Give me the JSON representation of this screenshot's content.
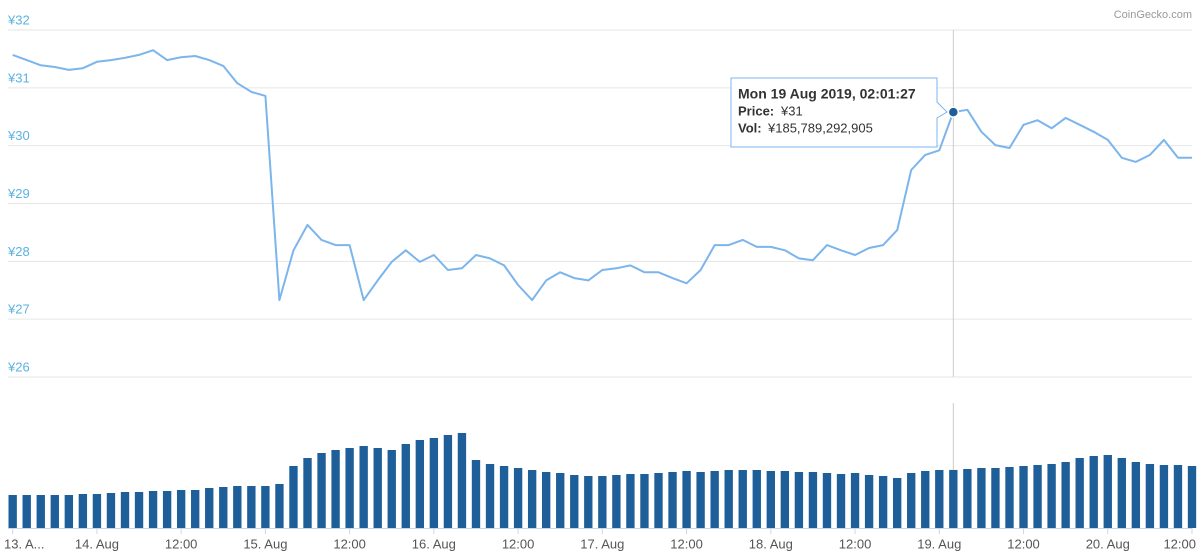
{
  "chart_data": {
    "type": "line",
    "watermark": "CoinGecko.com",
    "x": [
      "2019-08-13 12:00",
      "2019-08-13 14:00",
      "2019-08-13 16:00",
      "2019-08-13 18:00",
      "2019-08-13 20:00",
      "2019-08-13 22:00",
      "2019-08-14 00:00",
      "2019-08-14 02:00",
      "2019-08-14 04:00",
      "2019-08-14 06:00",
      "2019-08-14 08:00",
      "2019-08-14 10:00",
      "2019-08-14 12:00",
      "2019-08-14 14:00",
      "2019-08-14 16:00",
      "2019-08-14 18:00",
      "2019-08-14 20:00",
      "2019-08-14 22:00",
      "2019-08-15 00:00",
      "2019-08-15 02:00",
      "2019-08-15 04:00",
      "2019-08-15 06:00",
      "2019-08-15 08:00",
      "2019-08-15 10:00",
      "2019-08-15 12:00",
      "2019-08-15 14:00",
      "2019-08-15 16:00",
      "2019-08-15 18:00",
      "2019-08-15 20:00",
      "2019-08-15 22:00",
      "2019-08-16 00:00",
      "2019-08-16 02:00",
      "2019-08-16 04:00",
      "2019-08-16 06:00",
      "2019-08-16 08:00",
      "2019-08-16 10:00",
      "2019-08-16 12:00",
      "2019-08-16 14:00",
      "2019-08-16 16:00",
      "2019-08-16 18:00",
      "2019-08-16 20:00",
      "2019-08-16 22:00",
      "2019-08-17 00:00",
      "2019-08-17 02:00",
      "2019-08-17 04:00",
      "2019-08-17 06:00",
      "2019-08-17 08:00",
      "2019-08-17 10:00",
      "2019-08-17 12:00",
      "2019-08-17 14:00",
      "2019-08-17 16:00",
      "2019-08-17 18:00",
      "2019-08-17 20:00",
      "2019-08-17 22:00",
      "2019-08-18 00:00",
      "2019-08-18 02:00",
      "2019-08-18 04:00",
      "2019-08-18 06:00",
      "2019-08-18 08:00",
      "2019-08-18 10:00",
      "2019-08-18 12:00",
      "2019-08-18 14:00",
      "2019-08-18 16:00",
      "2019-08-18 18:00",
      "2019-08-18 20:00",
      "2019-08-18 22:00",
      "2019-08-19 00:00",
      "2019-08-19 02:00",
      "2019-08-19 04:00",
      "2019-08-19 06:00",
      "2019-08-19 08:00",
      "2019-08-19 10:00",
      "2019-08-19 12:00",
      "2019-08-19 14:00",
      "2019-08-19 16:00",
      "2019-08-19 18:00",
      "2019-08-19 20:00",
      "2019-08-19 22:00",
      "2019-08-20 00:00",
      "2019-08-20 02:00",
      "2019-08-20 04:00",
      "2019-08-20 06:00",
      "2019-08-20 08:00",
      "2019-08-20 10:00",
      "2019-08-20 12:00"
    ],
    "series": [
      {
        "color": "#7cb5ec",
        "type": "line",
        "values": [
          31.57,
          31.48,
          31.39,
          31.36,
          31.31,
          31.34,
          31.45,
          31.48,
          31.52,
          31.57,
          31.65,
          31.48,
          31.53,
          31.55,
          31.48,
          31.38,
          31.08,
          30.93,
          30.86,
          27.33,
          28.19,
          28.63,
          28.37,
          28.28,
          28.28,
          27.33,
          27.67,
          27.99,
          28.19,
          27.99,
          28.11,
          27.85,
          27.88,
          28.11,
          28.05,
          27.93,
          27.59,
          27.33,
          27.67,
          27.81,
          27.71,
          27.67,
          27.85,
          27.88,
          27.93,
          27.81,
          27.81,
          27.71,
          27.62,
          27.85,
          28.28,
          28.28,
          28.37,
          28.25,
          28.25,
          28.19,
          28.05,
          28.02,
          28.28,
          28.19,
          28.11,
          28.23,
          28.28,
          28.54,
          29.58,
          29.84,
          29.92,
          30.58,
          30.62,
          30.24,
          30.01,
          29.96,
          30.36,
          30.44,
          30.3,
          30.48,
          30.36,
          30.24,
          30.1,
          29.79,
          29.72,
          29.84,
          30.1,
          29.79,
          29.79
        ]
      },
      {
        "color": "#1f5f99",
        "type": "bar",
        "axis": "y2",
        "values": [
          105600000000.0,
          105600000000.0,
          105600000000.0,
          105600000000.0,
          105600000000.0,
          108800000000.0,
          108800000000.0,
          112000000000.0,
          115200000000.0,
          115200000000.0,
          118400000000.0,
          118400000000.0,
          121600000000.0,
          121600000000.0,
          128000000000.0,
          131200000000.0,
          134400000000.0,
          134400000000.0,
          134400000000.0,
          140800000000.0,
          198400000000.0,
          224000000000.0,
          240000000000.0,
          249600000000.0,
          256000000000.0,
          262400000000.0,
          256000000000.0,
          249600000000.0,
          268800000000.0,
          281600000000.0,
          288000000000.0,
          297600000000.0,
          304000000000.0,
          217600000000.0,
          204800000000.0,
          198400000000.0,
          192000000000.0,
          185600000000.0,
          179200000000.0,
          176000000000.0,
          169600000000.0,
          166400000000.0,
          166400000000.0,
          169600000000.0,
          172800000000.0,
          172800000000.0,
          176000000000.0,
          179200000000.0,
          182400000000.0,
          179200000000.0,
          182400000000.0,
          185600000000.0,
          185600000000.0,
          185600000000.0,
          182400000000.0,
          182400000000.0,
          179200000000.0,
          179200000000.0,
          176000000000.0,
          172800000000.0,
          176000000000.0,
          169600000000.0,
          166400000000.0,
          160000000000.0,
          176000000000.0,
          182400000000.0,
          185600000000.0,
          185789292905,
          188800000000.0,
          192000000000.0,
          192000000000.0,
          195200000000.0,
          198400000000.0,
          201600000000.0,
          204800000000.0,
          211200000000.0,
          224000000000.0,
          230400000000.0,
          233600000000.0,
          224000000000.0,
          211200000000.0,
          204800000000.0,
          201600000000.0,
          201600000000.0,
          198400000000.0
        ]
      }
    ],
    "xlim": [
      "2019-08-13 11:20",
      "2019-08-20 12:00"
    ],
    "xticks": [
      {
        "value": "2019-08-13 12:00",
        "label": "13. A..."
      },
      {
        "value": "2019-08-14 00:00",
        "label": "14. Aug"
      },
      {
        "value": "2019-08-14 12:00",
        "label": "12:00"
      },
      {
        "value": "2019-08-15 00:00",
        "label": "15. Aug"
      },
      {
        "value": "2019-08-15 12:00",
        "label": "12:00"
      },
      {
        "value": "2019-08-16 00:00",
        "label": "16. Aug"
      },
      {
        "value": "2019-08-16 12:00",
        "label": "12:00"
      },
      {
        "value": "2019-08-17 00:00",
        "label": "17. Aug"
      },
      {
        "value": "2019-08-17 12:00",
        "label": "12:00"
      },
      {
        "value": "2019-08-18 00:00",
        "label": "18. Aug"
      },
      {
        "value": "2019-08-18 12:00",
        "label": "12:00"
      },
      {
        "value": "2019-08-19 00:00",
        "label": "19. Aug"
      },
      {
        "value": "2019-08-19 12:00",
        "label": "12:00"
      },
      {
        "value": "2019-08-20 00:00",
        "label": "20. Aug"
      },
      {
        "value": "2019-08-20 12:00",
        "label": "12:00"
      }
    ],
    "ylim": [
      26,
      32
    ],
    "yticks": [
      {
        "value": 26,
        "label": "¥26"
      },
      {
        "value": 27,
        "label": "¥27"
      },
      {
        "value": 28,
        "label": "¥28"
      },
      {
        "value": 29,
        "label": "¥29"
      },
      {
        "value": 30,
        "label": "¥30"
      },
      {
        "value": 31,
        "label": "¥31"
      },
      {
        "value": 32,
        "label": "¥32"
      }
    ],
    "y2lim": [
      0,
      400000000000.0
    ],
    "grid": true,
    "tooltip": {
      "date": "Mon 19 Aug 2019, 02:01:27",
      "price_label": "Price:",
      "price": "¥31",
      "vol_label": "Vol:",
      "vol": "¥185,789,292,905"
    }
  }
}
